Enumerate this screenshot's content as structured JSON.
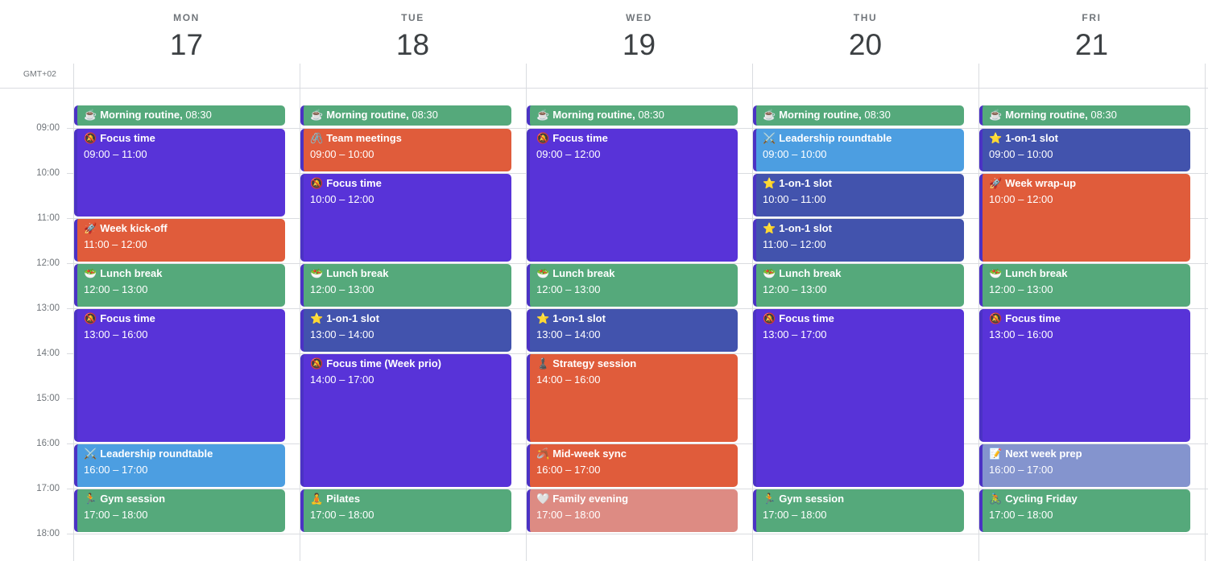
{
  "timezone": "GMT+02",
  "hours": [
    "09:00",
    "10:00",
    "11:00",
    "12:00",
    "13:00",
    "14:00",
    "15:00",
    "16:00",
    "17:00",
    "18:00"
  ],
  "colors": {
    "green": "#55a97b",
    "purple": "#5833d8",
    "orange": "#e05c3b",
    "navy": "#4253ad",
    "blue": "#4c9ee1",
    "salmon": "#dd8b83",
    "lavender": "#8494ce",
    "event_border": "#4b32c4",
    "grid_line": "#dadce0",
    "header_text": "#70757a",
    "date_text": "#3c4043",
    "event_text": "#ffffff"
  },
  "days": [
    {
      "label": "MON",
      "date": "17",
      "events": [
        {
          "icon": "☕",
          "icon_name": "coffee-icon",
          "title": "Morning routine,",
          "time": "08:30",
          "start": "08:30",
          "end": "09:00",
          "color": "green",
          "compact": true
        },
        {
          "icon": "🔕",
          "icon_name": "bell-muted-icon",
          "title": "Focus time",
          "time": "09:00 – 11:00",
          "start": "09:00",
          "end": "11:00",
          "color": "purple"
        },
        {
          "icon": "🚀",
          "icon_name": "rocket-icon",
          "title": "Week kick-off",
          "time": "11:00 – 12:00",
          "start": "11:00",
          "end": "12:00",
          "color": "orange"
        },
        {
          "icon": "🥗",
          "icon_name": "salad-icon",
          "title": "Lunch break",
          "time": "12:00 – 13:00",
          "start": "12:00",
          "end": "13:00",
          "color": "green"
        },
        {
          "icon": "🔕",
          "icon_name": "bell-muted-icon",
          "title": "Focus time",
          "time": "13:00 – 16:00",
          "start": "13:00",
          "end": "16:00",
          "color": "purple"
        },
        {
          "icon": "⚔️",
          "icon_name": "crossed-swords-icon",
          "title": "Leadership roundtable",
          "time": "16:00 – 17:00",
          "start": "16:00",
          "end": "17:00",
          "color": "blue"
        },
        {
          "icon": "🏃",
          "icon_name": "runner-icon",
          "title": "Gym session",
          "time": "17:00 – 18:00",
          "start": "17:00",
          "end": "18:00",
          "color": "green"
        }
      ]
    },
    {
      "label": "TUE",
      "date": "18",
      "events": [
        {
          "icon": "☕",
          "icon_name": "coffee-icon",
          "title": "Morning routine,",
          "time": "08:30",
          "start": "08:30",
          "end": "09:00",
          "color": "green",
          "compact": true
        },
        {
          "icon": "🖇️",
          "icon_name": "paperclips-icon",
          "title": "Team meetings",
          "time": "09:00 – 10:00",
          "start": "09:00",
          "end": "10:00",
          "color": "orange"
        },
        {
          "icon": "🔕",
          "icon_name": "bell-muted-icon",
          "title": "Focus time",
          "time": "10:00 – 12:00",
          "start": "10:00",
          "end": "12:00",
          "color": "purple"
        },
        {
          "icon": "🥗",
          "icon_name": "salad-icon",
          "title": "Lunch break",
          "time": "12:00 – 13:00",
          "start": "12:00",
          "end": "13:00",
          "color": "green"
        },
        {
          "icon": "⭐",
          "icon_name": "star-icon",
          "title": "1-on-1 slot",
          "time": "13:00 – 14:00",
          "start": "13:00",
          "end": "14:00",
          "color": "navy"
        },
        {
          "icon": "🔕",
          "icon_name": "bell-muted-icon",
          "title": "Focus time (Week prio)",
          "time": "14:00 – 17:00",
          "start": "14:00",
          "end": "17:00",
          "color": "purple"
        },
        {
          "icon": "🧘",
          "icon_name": "lotus-icon",
          "title": "Pilates",
          "time": "17:00 – 18:00",
          "start": "17:00",
          "end": "18:00",
          "color": "green"
        }
      ]
    },
    {
      "label": "WED",
      "date": "19",
      "events": [
        {
          "icon": "☕",
          "icon_name": "coffee-icon",
          "title": "Morning routine,",
          "time": "08:30",
          "start": "08:30",
          "end": "09:00",
          "color": "green",
          "compact": true
        },
        {
          "icon": "🔕",
          "icon_name": "bell-muted-icon",
          "title": "Focus time",
          "time": "09:00 – 12:00",
          "start": "09:00",
          "end": "12:00",
          "color": "purple"
        },
        {
          "icon": "🥗",
          "icon_name": "salad-icon",
          "title": "Lunch break",
          "time": "12:00 – 13:00",
          "start": "12:00",
          "end": "13:00",
          "color": "green"
        },
        {
          "icon": "⭐",
          "icon_name": "star-icon",
          "title": "1-on-1 slot",
          "time": "13:00 – 14:00",
          "start": "13:00",
          "end": "14:00",
          "color": "navy"
        },
        {
          "icon": "♟️",
          "icon_name": "chess-pawn-icon",
          "title": "Strategy session",
          "time": "14:00 – 16:00",
          "start": "14:00",
          "end": "16:00",
          "color": "orange"
        },
        {
          "icon": "🪃",
          "icon_name": "boomerang-icon",
          "title": "Mid-week sync",
          "time": "16:00 – 17:00",
          "start": "16:00",
          "end": "17:00",
          "color": "orange"
        },
        {
          "icon": "🤍",
          "icon_name": "white-heart-icon",
          "title": "Family evening",
          "time": "17:00 – 18:00",
          "start": "17:00",
          "end": "18:00",
          "color": "salmon"
        }
      ]
    },
    {
      "label": "THU",
      "date": "20",
      "events": [
        {
          "icon": "☕",
          "icon_name": "coffee-icon",
          "title": "Morning routine,",
          "time": "08:30",
          "start": "08:30",
          "end": "09:00",
          "color": "green",
          "compact": true
        },
        {
          "icon": "⚔️",
          "icon_name": "crossed-swords-icon",
          "title": "Leadership roundtable",
          "time": "09:00 – 10:00",
          "start": "09:00",
          "end": "10:00",
          "color": "blue"
        },
        {
          "icon": "⭐",
          "icon_name": "star-icon",
          "title": "1-on-1 slot",
          "time": "10:00 – 11:00",
          "start": "10:00",
          "end": "11:00",
          "color": "navy"
        },
        {
          "icon": "⭐",
          "icon_name": "star-icon",
          "title": "1-on-1 slot",
          "time": "11:00 – 12:00",
          "start": "11:00",
          "end": "12:00",
          "color": "navy"
        },
        {
          "icon": "🥗",
          "icon_name": "salad-icon",
          "title": "Lunch break",
          "time": "12:00 – 13:00",
          "start": "12:00",
          "end": "13:00",
          "color": "green"
        },
        {
          "icon": "🔕",
          "icon_name": "bell-muted-icon",
          "title": "Focus time",
          "time": "13:00 – 17:00",
          "start": "13:00",
          "end": "17:00",
          "color": "purple"
        },
        {
          "icon": "🏃",
          "icon_name": "runner-icon",
          "title": "Gym session",
          "time": "17:00 – 18:00",
          "start": "17:00",
          "end": "18:00",
          "color": "green"
        }
      ]
    },
    {
      "label": "FRI",
      "date": "21",
      "events": [
        {
          "icon": "☕",
          "icon_name": "coffee-icon",
          "title": "Morning routine,",
          "time": "08:30",
          "start": "08:30",
          "end": "09:00",
          "color": "green",
          "compact": true
        },
        {
          "icon": "⭐",
          "icon_name": "star-icon",
          "title": "1-on-1 slot",
          "time": "09:00 – 10:00",
          "start": "09:00",
          "end": "10:00",
          "color": "navy"
        },
        {
          "icon": "🚀",
          "icon_name": "rocket-icon",
          "title": "Week wrap-up",
          "time": "10:00 – 12:00",
          "start": "10:00",
          "end": "12:00",
          "color": "orange"
        },
        {
          "icon": "🥗",
          "icon_name": "salad-icon",
          "title": "Lunch break",
          "time": "12:00 – 13:00",
          "start": "12:00",
          "end": "13:00",
          "color": "green"
        },
        {
          "icon": "🔕",
          "icon_name": "bell-muted-icon",
          "title": "Focus time",
          "time": "13:00 – 16:00",
          "start": "13:00",
          "end": "16:00",
          "color": "purple"
        },
        {
          "icon": "📝",
          "icon_name": "memo-icon",
          "title": "Next week prep",
          "time": "16:00 – 17:00",
          "start": "16:00",
          "end": "17:00",
          "color": "lavender"
        },
        {
          "icon": "🚴",
          "icon_name": "cyclist-icon",
          "title": "Cycling Friday",
          "time": "17:00 – 18:00",
          "start": "17:00",
          "end": "18:00",
          "color": "green"
        }
      ]
    }
  ]
}
